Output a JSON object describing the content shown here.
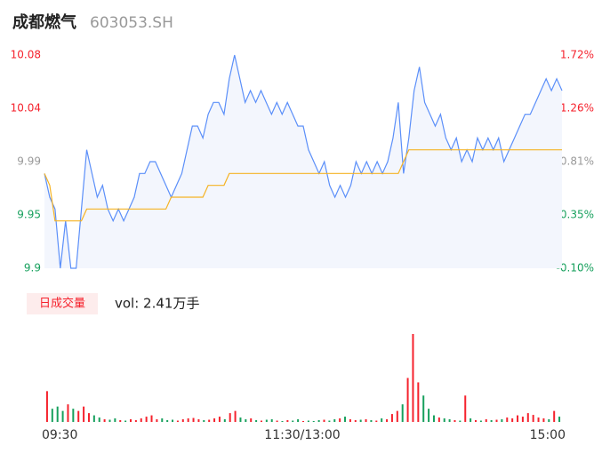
{
  "chart_data": {
    "type": "intraday",
    "title": "成都燃气",
    "subtitle": "603053.SH",
    "x_labels": [
      "09:30",
      "11:30/13:00",
      "15:00"
    ],
    "series": [
      {
        "name": "price",
        "color": "#5b8ff9",
        "values": [
          9.98,
          9.96,
          9.95,
          9.9,
          9.94,
          9.9,
          9.9,
          9.95,
          10.0,
          9.98,
          9.96,
          9.97,
          9.95,
          9.94,
          9.95,
          9.94,
          9.95,
          9.96,
          9.98,
          9.98,
          9.99,
          9.99,
          9.98,
          9.97,
          9.96,
          9.97,
          9.98,
          10.0,
          10.02,
          10.02,
          10.01,
          10.03,
          10.04,
          10.04,
          10.03,
          10.06,
          10.08,
          10.06,
          10.04,
          10.05,
          10.04,
          10.05,
          10.04,
          10.03,
          10.04,
          10.03,
          10.04,
          10.03,
          10.02,
          10.02,
          10.0,
          9.99,
          9.98,
          9.99,
          9.97,
          9.96,
          9.97,
          9.96,
          9.97,
          9.99,
          9.98,
          9.99,
          9.98,
          9.99,
          9.98,
          9.99,
          10.01,
          10.04,
          9.98,
          10.01,
          10.05,
          10.07,
          10.04,
          10.03,
          10.02,
          10.03,
          10.01,
          10.0,
          10.01,
          9.99,
          10.0,
          9.99,
          10.01,
          10.0,
          10.01,
          10.0,
          10.01,
          9.99,
          10.0,
          10.01,
          10.02,
          10.03,
          10.03,
          10.04,
          10.05,
          10.06,
          10.05,
          10.06,
          10.05
        ]
      },
      {
        "name": "average",
        "color": "#f5b324",
        "values": [
          9.98,
          9.97,
          9.94,
          9.94,
          9.94,
          9.94,
          9.94,
          9.94,
          9.95,
          9.95,
          9.95,
          9.95,
          9.95,
          9.95,
          9.95,
          9.95,
          9.95,
          9.95,
          9.95,
          9.95,
          9.95,
          9.95,
          9.95,
          9.95,
          9.96,
          9.96,
          9.96,
          9.96,
          9.96,
          9.96,
          9.96,
          9.97,
          9.97,
          9.97,
          9.97,
          9.98,
          9.98,
          9.98,
          9.98,
          9.98,
          9.98,
          9.98,
          9.98,
          9.98,
          9.98,
          9.98,
          9.98,
          9.98,
          9.98,
          9.98,
          9.98,
          9.98,
          9.98,
          9.98,
          9.98,
          9.98,
          9.98,
          9.98,
          9.98,
          9.98,
          9.98,
          9.98,
          9.98,
          9.98,
          9.98,
          9.98,
          9.98,
          9.98,
          9.99,
          10.0,
          10.0,
          10.0,
          10.0,
          10.0,
          10.0,
          10.0,
          10.0,
          10.0,
          10.0,
          10.0,
          10.0,
          10.0,
          10.0,
          10.0,
          10.0,
          10.0,
          10.0,
          10.0,
          10.0,
          10.0,
          10.0,
          10.0,
          10.0,
          10.0,
          10.0,
          10.0,
          10.0,
          10.0,
          10.0
        ]
      }
    ],
    "ylim": [
      9.9,
      10.08
    ],
    "yticks": [
      10.08,
      {
        "value": 10.035,
        "label": "10.04"
      },
      9.99,
      {
        "value": 9.945,
        "label": "9.95"
      },
      9.9
    ],
    "ytick_colors": [
      "#f5222d",
      "#f5222d",
      "#999999",
      "#17a05d",
      "#17a05d"
    ],
    "y2lim": [
      -0.1,
      1.72
    ],
    "y2ticks": [
      {
        "value": 1.72,
        "label": "1.72%"
      },
      {
        "value": 1.265,
        "label": "1.26%"
      },
      {
        "value": 0.81,
        "label": "0.81%"
      },
      {
        "value": 0.355,
        "label": "0.35%"
      },
      {
        "value": -0.1,
        "label": "-0.10%"
      }
    ],
    "volume_badge": "日成交量",
    "volume_text": "vol: 2.41万手",
    "up_color": "#f5222d",
    "down_color": "#17a05d",
    "volume": [
      700,
      300,
      350,
      250,
      400,
      300,
      250,
      350,
      200,
      150,
      100,
      60,
      50,
      80,
      40,
      30,
      60,
      40,
      80,
      120,
      150,
      60,
      80,
      40,
      50,
      30,
      60,
      80,
      90,
      60,
      40,
      50,
      80,
      120,
      60,
      200,
      250,
      100,
      60,
      80,
      40,
      30,
      50,
      60,
      30,
      20,
      40,
      30,
      60,
      20,
      30,
      20,
      40,
      50,
      30,
      60,
      80,
      120,
      60,
      40,
      50,
      60,
      40,
      30,
      80,
      60,
      180,
      250,
      400,
      1000,
      2000,
      900,
      600,
      300,
      150,
      100,
      80,
      60,
      40,
      30,
      600,
      80,
      40,
      30,
      60,
      40,
      50,
      60,
      100,
      80,
      150,
      120,
      200,
      160,
      100,
      80,
      60,
      250,
      120
    ],
    "volume_ylim": [
      0,
      2000
    ]
  }
}
